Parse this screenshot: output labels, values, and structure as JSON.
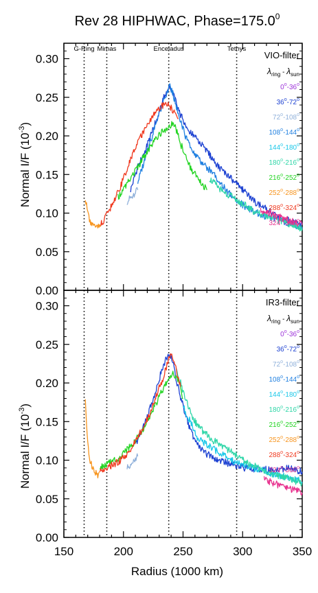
{
  "title_main": "Rev 28 HIPHWAC, Phase=175.0",
  "title_sup": "0",
  "x_axis_label": "Radius (1000 km)",
  "y_axis_label_main": "Normal I/F (10",
  "y_axis_label_sup": "-3",
  "y_axis_label_end": ")",
  "legend_header": {
    "lambda": "λ",
    "ring": "ring",
    "minus": " - ",
    "sun": "sun"
  },
  "degree_sign": "o",
  "chart_data": [
    {
      "type": "line",
      "panel_title": "VIO-filter",
      "xlim": [
        150,
        350
      ],
      "ylim": [
        0,
        0.32
      ],
      "x_ticks": [
        150,
        200,
        250,
        300,
        350
      ],
      "y_ticks": [
        "0.00",
        "0.05",
        "0.10",
        "0.15",
        "0.20",
        "0.25",
        "0.30"
      ],
      "moons": [
        {
          "name": "G-Ring",
          "x": 167
        },
        {
          "name": "Mimas",
          "x": 186
        },
        {
          "name": "Enceladus",
          "x": 238
        },
        {
          "name": "Tethys",
          "x": 295
        }
      ],
      "series": [
        {
          "name": "0-36",
          "lo": "0",
          "hi": "36",
          "color": "#9b30d9",
          "points": []
        },
        {
          "name": "36-72",
          "lo": "36",
          "hi": "72",
          "color": "#1a3fd1",
          "points": [
            [
              206,
              0.13
            ],
            [
              212,
              0.16
            ],
            [
              218,
              0.18
            ],
            [
              224,
              0.205
            ],
            [
              230,
              0.23
            ],
            [
              235,
              0.255
            ],
            [
              238,
              0.262
            ],
            [
              242,
              0.255
            ],
            [
              246,
              0.235
            ],
            [
              250,
              0.22
            ],
            [
              256,
              0.205
            ],
            [
              262,
              0.195
            ],
            [
              270,
              0.18
            ],
            [
              280,
              0.16
            ],
            [
              290,
              0.145
            ],
            [
              300,
              0.13
            ],
            [
              310,
              0.115
            ],
            [
              320,
              0.105
            ],
            [
              330,
              0.095
            ],
            [
              340,
              0.09
            ],
            [
              350,
              0.085
            ]
          ]
        },
        {
          "name": "72-108",
          "lo": "72",
          "hi": "108",
          "color": "#8fb0da",
          "points": [
            [
              203,
              0.115
            ],
            [
              206,
              0.12
            ],
            [
              209,
              0.125
            ],
            [
              212,
              0.13
            ]
          ]
        },
        {
          "name": "108-144",
          "lo": "108",
          "hi": "144",
          "color": "#1e7fe0",
          "points": [
            [
              212,
              0.14
            ],
            [
              218,
              0.17
            ],
            [
              224,
              0.2
            ],
            [
              230,
              0.23
            ],
            [
              236,
              0.255
            ],
            [
              239,
              0.265
            ],
            [
              242,
              0.252
            ],
            [
              246,
              0.228
            ],
            [
              252,
              0.2
            ],
            [
              258,
              0.18
            ],
            [
              266,
              0.165
            ],
            [
              276,
              0.15
            ],
            [
              286,
              0.13
            ],
            [
              296,
              0.115
            ],
            [
              306,
              0.105
            ],
            [
              316,
              0.098
            ],
            [
              326,
              0.092
            ],
            [
              336,
              0.088
            ],
            [
              350,
              0.082
            ]
          ]
        },
        {
          "name": "144-180",
          "lo": "144",
          "hi": "180",
          "color": "#19c7e8",
          "points": []
        },
        {
          "name": "180-216",
          "lo": "180",
          "hi": "216",
          "color": "#2fd6a8",
          "points": [
            [
              272,
              0.145
            ],
            [
              282,
              0.13
            ],
            [
              292,
              0.12
            ],
            [
              302,
              0.11
            ],
            [
              312,
              0.1
            ],
            [
              322,
              0.095
            ],
            [
              332,
              0.09
            ],
            [
              342,
              0.085
            ],
            [
              350,
              0.08
            ]
          ]
        },
        {
          "name": "216-252",
          "lo": "216",
          "hi": "252",
          "color": "#22d422",
          "points": [
            [
              195,
              0.12
            ],
            [
              202,
              0.135
            ],
            [
              208,
              0.15
            ],
            [
              214,
              0.165
            ],
            [
              220,
              0.18
            ],
            [
              226,
              0.195
            ],
            [
              232,
              0.205
            ],
            [
              237,
              0.21
            ],
            [
              240,
              0.215
            ],
            [
              244,
              0.21
            ],
            [
              248,
              0.19
            ],
            [
              254,
              0.165
            ],
            [
              262,
              0.145
            ],
            [
              270,
              0.13
            ]
          ]
        },
        {
          "name": "252-288",
          "lo": "252",
          "hi": "288",
          "color": "#f7941d",
          "points": [
            [
              168,
              0.12
            ],
            [
              170,
              0.1
            ],
            [
              172,
              0.09
            ],
            [
              175,
              0.083
            ],
            [
              178,
              0.082
            ],
            [
              181,
              0.084
            ]
          ]
        },
        {
          "name": "288-324",
          "lo": "288",
          "hi": "324",
          "color": "#f0381e",
          "points": [
            [
              181,
              0.085
            ],
            [
              185,
              0.095
            ],
            [
              190,
              0.11
            ],
            [
              195,
              0.125
            ],
            [
              200,
              0.145
            ],
            [
              205,
              0.165
            ],
            [
              210,
              0.185
            ],
            [
              215,
              0.2
            ],
            [
              220,
              0.215
            ],
            [
              225,
              0.228
            ],
            [
              230,
              0.235
            ],
            [
              235,
              0.243
            ],
            [
              238,
              0.24
            ],
            [
              242,
              0.232
            ],
            [
              246,
              0.222
            ]
          ]
        },
        {
          "name": "324-360",
          "lo": "324",
          "hi": "360",
          "color": "#e8338f",
          "points": [
            [
              315,
              0.103
            ],
            [
              322,
              0.1
            ],
            [
              330,
              0.095
            ],
            [
              340,
              0.09
            ],
            [
              350,
              0.085
            ]
          ]
        }
      ]
    },
    {
      "type": "line",
      "panel_title": "IR3-filter",
      "xlim": [
        150,
        350
      ],
      "ylim": [
        0,
        0.32
      ],
      "x_ticks": [
        150,
        200,
        250,
        300,
        350
      ],
      "y_ticks": [
        "0.00",
        "0.05",
        "0.10",
        "0.15",
        "0.20",
        "0.25",
        "0.30"
      ],
      "moons": [
        {
          "name": "G-Ring",
          "x": 167
        },
        {
          "name": "Mimas",
          "x": 186
        },
        {
          "name": "Enceladus",
          "x": 238
        },
        {
          "name": "Tethys",
          "x": 295
        }
      ],
      "series": [
        {
          "name": "0-36",
          "lo": "0",
          "hi": "36",
          "color": "#9b30d9",
          "points": []
        },
        {
          "name": "36-72",
          "lo": "36",
          "hi": "72",
          "color": "#1a3fd1",
          "points": [
            [
              210,
              0.12
            ],
            [
              216,
              0.14
            ],
            [
              222,
              0.165
            ],
            [
              228,
              0.195
            ],
            [
              234,
              0.225
            ],
            [
              238,
              0.238
            ],
            [
              241,
              0.23
            ],
            [
              245,
              0.2
            ],
            [
              250,
              0.17
            ],
            [
              256,
              0.14
            ],
            [
              262,
              0.12
            ],
            [
              270,
              0.108
            ],
            [
              280,
              0.1
            ],
            [
              290,
              0.095
            ],
            [
              300,
              0.09
            ],
            [
              310,
              0.088
            ],
            [
              320,
              0.088
            ],
            [
              330,
              0.088
            ],
            [
              340,
              0.09
            ],
            [
              350,
              0.085
            ]
          ]
        },
        {
          "name": "72-108",
          "lo": "72",
          "hi": "108",
          "color": "#8fb0da",
          "points": [
            [
              203,
              0.09
            ],
            [
              206,
              0.095
            ],
            [
              209,
              0.1
            ],
            [
              212,
              0.105
            ]
          ]
        },
        {
          "name": "108-144",
          "lo": "108",
          "hi": "144",
          "color": "#1e7fe0",
          "points": []
        },
        {
          "name": "144-180",
          "lo": "144",
          "hi": "180",
          "color": "#19c7e8",
          "points": [
            [
              250,
              0.17
            ],
            [
              256,
              0.15
            ],
            [
              262,
              0.13
            ],
            [
              270,
              0.12
            ],
            [
              280,
              0.11
            ],
            [
              290,
              0.1
            ],
            [
              300,
              0.095
            ],
            [
              310,
              0.09
            ],
            [
              320,
              0.085
            ],
            [
              330,
              0.08
            ],
            [
              340,
              0.078
            ],
            [
              350,
              0.072
            ]
          ]
        },
        {
          "name": "180-216",
          "lo": "180",
          "hi": "216",
          "color": "#2fd6a8",
          "points": [
            [
              244,
              0.22
            ],
            [
              248,
              0.2
            ],
            [
              254,
              0.17
            ],
            [
              260,
              0.15
            ],
            [
              268,
              0.135
            ],
            [
              276,
              0.125
            ],
            [
              286,
              0.115
            ],
            [
              296,
              0.105
            ],
            [
              306,
              0.095
            ],
            [
              316,
              0.088
            ],
            [
              326,
              0.082
            ],
            [
              336,
              0.077
            ],
            [
              350,
              0.07
            ]
          ]
        },
        {
          "name": "216-252",
          "lo": "216",
          "hi": "252",
          "color": "#22d422",
          "points": [
            [
              180,
              0.09
            ],
            [
              186,
              0.095
            ],
            [
              192,
              0.1
            ],
            [
              198,
              0.105
            ],
            [
              204,
              0.115
            ],
            [
              210,
              0.125
            ],
            [
              216,
              0.14
            ],
            [
              222,
              0.155
            ],
            [
              228,
              0.175
            ],
            [
              234,
              0.195
            ],
            [
              238,
              0.205
            ],
            [
              242,
              0.212
            ],
            [
              246,
              0.205
            ],
            [
              250,
              0.18
            ]
          ]
        },
        {
          "name": "252-288",
          "lo": "252",
          "hi": "288",
          "color": "#f7941d",
          "points": [
            [
              168,
              0.175
            ],
            [
              169,
              0.15
            ],
            [
              170,
              0.12
            ],
            [
              172,
              0.1
            ],
            [
              174,
              0.09
            ],
            [
              176,
              0.085
            ],
            [
              178,
              0.08
            ],
            [
              180,
              0.085
            ]
          ]
        },
        {
          "name": "288-324",
          "lo": "288",
          "hi": "324",
          "color": "#f0381e",
          "points": [
            [
              180,
              0.085
            ],
            [
              186,
              0.09
            ],
            [
              192,
              0.095
            ],
            [
              198,
              0.1
            ],
            [
              204,
              0.11
            ],
            [
              210,
              0.125
            ],
            [
              216,
              0.14
            ],
            [
              222,
              0.16
            ],
            [
              228,
              0.185
            ],
            [
              234,
              0.21
            ],
            [
              238,
              0.232
            ],
            [
              241,
              0.235
            ],
            [
              244,
              0.22
            ],
            [
              248,
              0.195
            ]
          ]
        },
        {
          "name": "324-360",
          "lo": "324",
          "hi": "360",
          "color": "#e8338f",
          "points": [
            [
              318,
              0.075
            ],
            [
              326,
              0.07
            ],
            [
              334,
              0.066
            ],
            [
              342,
              0.062
            ],
            [
              350,
              0.058
            ]
          ]
        }
      ]
    }
  ]
}
